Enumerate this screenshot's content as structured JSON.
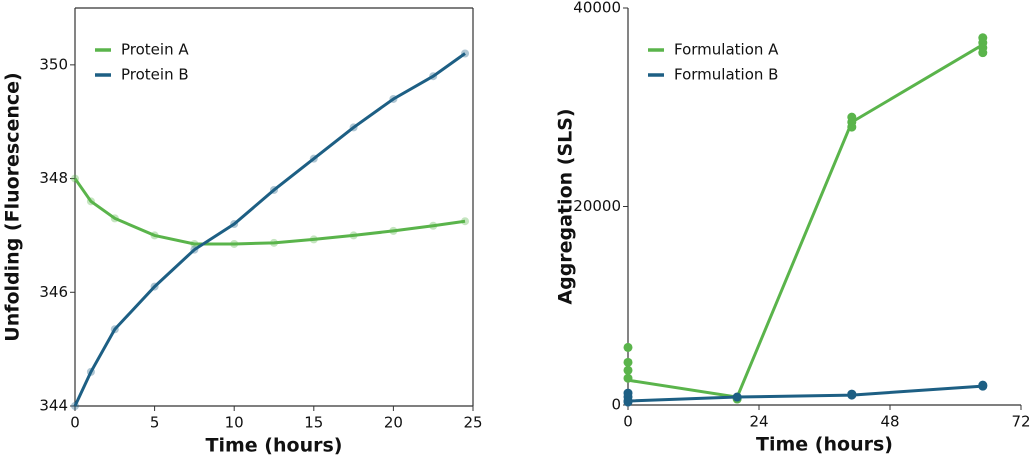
{
  "chart_data": [
    {
      "type": "line",
      "xlabel": "Time (hours)",
      "ylabel": "Unfolding (Fluorescence)",
      "x": [
        0,
        1,
        2.5,
        5,
        7.5,
        10,
        12.5,
        15,
        17.5,
        20,
        22.5,
        24.5
      ],
      "series": [
        {
          "name": "Protein A",
          "color": "#5ab44b",
          "values": [
            348.0,
            347.6,
            347.3,
            347.0,
            346.85,
            346.85,
            346.87,
            346.93,
            347.0,
            347.08,
            347.17,
            347.25
          ]
        },
        {
          "name": "Protein B",
          "color": "#1d5f84",
          "values": [
            344.0,
            344.6,
            345.35,
            346.1,
            346.75,
            347.2,
            347.8,
            348.35,
            348.9,
            349.4,
            349.8,
            350.2
          ]
        }
      ],
      "xlim": [
        0,
        25
      ],
      "xticks": [
        0,
        5,
        10,
        15,
        20,
        25
      ],
      "ylim": [
        344,
        351
      ],
      "yticks": [
        344,
        346,
        348,
        350
      ],
      "legend": "upper left",
      "frame": "box"
    },
    {
      "type": "line",
      "xlabel": "Time (hours)",
      "ylabel": "Aggregation (SLS)",
      "x": [
        0,
        20,
        41,
        65
      ],
      "series": [
        {
          "name": "Formulation A",
          "color": "#5ab44b",
          "values": [
            2500,
            800,
            28500,
            36300
          ],
          "replicates": [
            [
              5800,
              4300,
              3500,
              2700
            ],
            [
              700,
              600
            ],
            [
              29000,
              28500,
              28000
            ],
            [
              37000,
              36500,
              36000,
              35500
            ]
          ]
        },
        {
          "name": "Formulation B",
          "color": "#1d5f84",
          "values": [
            400,
            800,
            1000,
            1900
          ],
          "replicates": [
            [
              1200,
              800,
              400,
              300
            ],
            [
              800
            ],
            [
              1100,
              1000
            ],
            [
              2000,
              1900
            ]
          ]
        }
      ],
      "xlim": [
        0,
        72
      ],
      "xticks": [
        0,
        24,
        48,
        72
      ],
      "ylim": [
        0,
        40000
      ],
      "yticks": [
        0,
        20000,
        40000
      ],
      "legend": "upper left",
      "frame": "open"
    }
  ]
}
